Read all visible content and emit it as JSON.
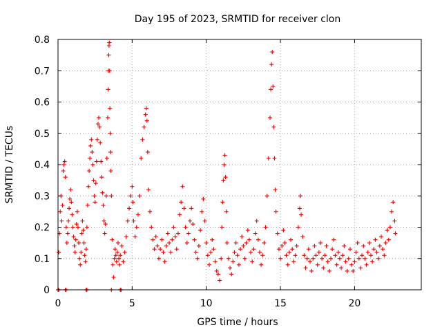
{
  "chart_data": {
    "type": "scatter",
    "title": "Day 195 of 2023, SRMTID for receiver clon",
    "xlabel": "GPS time / hours",
    "ylabel": "SRMTID / TECUs",
    "xlim": [
      0,
      24.5
    ],
    "ylim": [
      0,
      0.8
    ],
    "x_ticks": [
      0,
      5,
      10,
      15,
      20
    ],
    "y_ticks": [
      0,
      0.1,
      0.2,
      0.3,
      0.4,
      0.5,
      0.6,
      0.7,
      0.8
    ],
    "x_tick_labels": [
      "0",
      "5",
      "10",
      "15",
      "20"
    ],
    "y_tick_labels": [
      "0",
      "0.1",
      "0.2",
      "0.3",
      "0.4",
      "0.5",
      "0.6",
      "0.7",
      "0.8"
    ],
    "grid": true,
    "marker": "+",
    "marker_color": "#ff0000",
    "series": [
      {
        "name": "SRMTID",
        "points": [
          [
            0.0,
            0.0
          ],
          [
            0.05,
            0.0
          ],
          [
            0.5,
            0.0
          ],
          [
            0.55,
            0.0
          ],
          [
            1.9,
            0.0
          ],
          [
            1.95,
            0.0
          ],
          [
            3.6,
            0.0
          ],
          [
            4.2,
            0.0
          ],
          [
            4.25,
            0.0
          ],
          [
            0.05,
            0.12
          ],
          [
            0.1,
            0.18
          ],
          [
            0.15,
            0.25
          ],
          [
            0.2,
            0.3
          ],
          [
            0.25,
            0.22
          ],
          [
            0.3,
            0.27
          ],
          [
            0.35,
            0.38
          ],
          [
            0.4,
            0.4
          ],
          [
            0.45,
            0.41
          ],
          [
            0.5,
            0.36
          ],
          [
            0.55,
            0.2
          ],
          [
            0.6,
            0.15
          ],
          [
            0.65,
            0.18
          ],
          [
            0.7,
            0.22
          ],
          [
            0.75,
            0.26
          ],
          [
            0.8,
            0.29
          ],
          [
            0.85,
            0.32
          ],
          [
            0.9,
            0.28
          ],
          [
            0.95,
            0.24
          ],
          [
            1.0,
            0.2
          ],
          [
            1.05,
            0.17
          ],
          [
            1.1,
            0.14
          ],
          [
            1.15,
            0.12
          ],
          [
            1.2,
            0.16
          ],
          [
            1.25,
            0.21
          ],
          [
            1.3,
            0.25
          ],
          [
            1.35,
            0.2
          ],
          [
            1.4,
            0.15
          ],
          [
            1.45,
            0.1
          ],
          [
            1.5,
            0.08
          ],
          [
            1.55,
            0.12
          ],
          [
            1.6,
            0.18
          ],
          [
            1.65,
            0.22
          ],
          [
            1.7,
            0.19
          ],
          [
            1.75,
            0.15
          ],
          [
            1.8,
            0.11
          ],
          [
            1.85,
            0.09
          ],
          [
            1.9,
            0.13
          ],
          [
            1.95,
            0.2
          ],
          [
            2.0,
            0.27
          ],
          [
            2.05,
            0.33
          ],
          [
            2.1,
            0.38
          ],
          [
            2.15,
            0.42
          ],
          [
            2.2,
            0.46
          ],
          [
            2.25,
            0.48
          ],
          [
            2.3,
            0.44
          ],
          [
            2.35,
            0.4
          ],
          [
            2.4,
            0.35
          ],
          [
            2.45,
            0.3
          ],
          [
            2.5,
            0.28
          ],
          [
            2.55,
            0.34
          ],
          [
            2.6,
            0.41
          ],
          [
            2.65,
            0.48
          ],
          [
            2.7,
            0.53
          ],
          [
            2.75,
            0.55
          ],
          [
            2.8,
            0.52
          ],
          [
            2.85,
            0.47
          ],
          [
            2.9,
            0.41
          ],
          [
            2.95,
            0.36
          ],
          [
            3.0,
            0.31
          ],
          [
            3.05,
            0.27
          ],
          [
            3.1,
            0.22
          ],
          [
            3.15,
            0.18
          ],
          [
            3.2,
            0.21
          ],
          [
            3.25,
            0.3
          ],
          [
            3.3,
            0.42
          ],
          [
            3.35,
            0.55
          ],
          [
            3.38,
            0.64
          ],
          [
            3.4,
            0.7
          ],
          [
            3.42,
            0.75
          ],
          [
            3.44,
            0.78
          ],
          [
            3.46,
            0.79
          ],
          [
            3.48,
            0.7
          ],
          [
            3.5,
            0.58
          ],
          [
            3.52,
            0.5
          ],
          [
            3.54,
            0.44
          ],
          [
            3.56,
            0.38
          ],
          [
            3.6,
            0.3
          ],
          [
            3.65,
            0.16
          ],
          [
            3.7,
            0.08
          ],
          [
            3.75,
            0.04
          ],
          [
            3.8,
            0.1
          ],
          [
            3.85,
            0.13
          ],
          [
            3.9,
            0.11
          ],
          [
            3.95,
            0.09
          ],
          [
            4.0,
            0.12
          ],
          [
            4.05,
            0.15
          ],
          [
            4.1,
            0.1
          ],
          [
            4.15,
            0.08
          ],
          [
            4.2,
            0.11
          ],
          [
            4.3,
            0.14
          ],
          [
            4.4,
            0.09
          ],
          [
            4.5,
            0.12
          ],
          [
            4.6,
            0.17
          ],
          [
            4.7,
            0.22
          ],
          [
            4.8,
            0.26
          ],
          [
            4.9,
            0.3
          ],
          [
            5.0,
            0.33
          ],
          [
            5.05,
            0.28
          ],
          [
            5.1,
            0.22
          ],
          [
            5.2,
            0.17
          ],
          [
            5.3,
            0.2
          ],
          [
            5.4,
            0.24
          ],
          [
            5.5,
            0.3
          ],
          [
            5.6,
            0.42
          ],
          [
            5.7,
            0.48
          ],
          [
            5.8,
            0.52
          ],
          [
            5.9,
            0.56
          ],
          [
            5.95,
            0.58
          ],
          [
            6.0,
            0.54
          ],
          [
            6.05,
            0.44
          ],
          [
            6.1,
            0.32
          ],
          [
            6.2,
            0.25
          ],
          [
            6.3,
            0.2
          ],
          [
            6.4,
            0.16
          ],
          [
            6.5,
            0.13
          ],
          [
            6.6,
            0.17
          ],
          [
            6.7,
            0.14
          ],
          [
            6.8,
            0.1
          ],
          [
            6.9,
            0.13
          ],
          [
            7.0,
            0.16
          ],
          [
            7.1,
            0.12
          ],
          [
            7.2,
            0.09
          ],
          [
            7.3,
            0.14
          ],
          [
            7.4,
            0.18
          ],
          [
            7.5,
            0.15
          ],
          [
            7.6,
            0.12
          ],
          [
            7.7,
            0.16
          ],
          [
            7.8,
            0.2
          ],
          [
            7.9,
            0.17
          ],
          [
            8.0,
            0.13
          ],
          [
            8.1,
            0.18
          ],
          [
            8.2,
            0.24
          ],
          [
            8.3,
            0.28
          ],
          [
            8.4,
            0.33
          ],
          [
            8.5,
            0.26
          ],
          [
            8.6,
            0.2
          ],
          [
            8.7,
            0.15
          ],
          [
            8.8,
            0.18
          ],
          [
            8.9,
            0.22
          ],
          [
            9.0,
            0.26
          ],
          [
            9.1,
            0.21
          ],
          [
            9.2,
            0.16
          ],
          [
            9.3,
            0.12
          ],
          [
            9.4,
            0.1
          ],
          [
            9.5,
            0.14
          ],
          [
            9.6,
            0.19
          ],
          [
            9.7,
            0.25
          ],
          [
            9.8,
            0.29
          ],
          [
            9.9,
            0.22
          ],
          [
            10.0,
            0.15
          ],
          [
            10.1,
            0.11
          ],
          [
            10.2,
            0.08
          ],
          [
            10.3,
            0.12
          ],
          [
            10.4,
            0.16
          ],
          [
            10.5,
            0.13
          ],
          [
            10.6,
            0.09
          ],
          [
            10.7,
            0.06
          ],
          [
            10.8,
            0.05
          ],
          [
            10.9,
            0.03
          ],
          [
            11.0,
            0.1
          ],
          [
            11.05,
            0.2
          ],
          [
            11.1,
            0.28
          ],
          [
            11.15,
            0.35
          ],
          [
            11.2,
            0.4
          ],
          [
            11.25,
            0.43
          ],
          [
            11.3,
            0.36
          ],
          [
            11.35,
            0.25
          ],
          [
            11.4,
            0.15
          ],
          [
            11.5,
            0.1
          ],
          [
            11.6,
            0.07
          ],
          [
            11.7,
            0.05
          ],
          [
            11.8,
            0.09
          ],
          [
            11.9,
            0.12
          ],
          [
            12.0,
            0.15
          ],
          [
            12.1,
            0.11
          ],
          [
            12.2,
            0.08
          ],
          [
            12.3,
            0.13
          ],
          [
            12.4,
            0.17
          ],
          [
            12.5,
            0.14
          ],
          [
            12.6,
            0.1
          ],
          [
            12.7,
            0.15
          ],
          [
            12.8,
            0.19
          ],
          [
            12.9,
            0.16
          ],
          [
            13.0,
            0.12
          ],
          [
            13.1,
            0.09
          ],
          [
            13.2,
            0.13
          ],
          [
            13.3,
            0.18
          ],
          [
            13.4,
            0.22
          ],
          [
            13.5,
            0.16
          ],
          [
            13.6,
            0.12
          ],
          [
            13.7,
            0.08
          ],
          [
            13.8,
            0.11
          ],
          [
            13.9,
            0.15
          ],
          [
            14.0,
            0.2
          ],
          [
            14.1,
            0.3
          ],
          [
            14.2,
            0.42
          ],
          [
            14.3,
            0.55
          ],
          [
            14.35,
            0.64
          ],
          [
            14.4,
            0.72
          ],
          [
            14.45,
            0.76
          ],
          [
            14.5,
            0.65
          ],
          [
            14.55,
            0.52
          ],
          [
            14.6,
            0.42
          ],
          [
            14.65,
            0.32
          ],
          [
            14.7,
            0.25
          ],
          [
            14.8,
            0.18
          ],
          [
            14.9,
            0.13
          ],
          [
            15.0,
            0.1
          ],
          [
            15.1,
            0.14
          ],
          [
            15.2,
            0.19
          ],
          [
            15.3,
            0.15
          ],
          [
            15.4,
            0.11
          ],
          [
            15.5,
            0.08
          ],
          [
            15.6,
            0.12
          ],
          [
            15.7,
            0.16
          ],
          [
            15.8,
            0.13
          ],
          [
            15.9,
            0.09
          ],
          [
            16.0,
            0.11
          ],
          [
            16.1,
            0.14
          ],
          [
            16.2,
            0.2
          ],
          [
            16.3,
            0.26
          ],
          [
            16.35,
            0.3
          ],
          [
            16.4,
            0.24
          ],
          [
            16.5,
            0.17
          ],
          [
            16.6,
            0.11
          ],
          [
            16.7,
            0.07
          ],
          [
            16.8,
            0.1
          ],
          [
            16.9,
            0.13
          ],
          [
            17.0,
            0.09
          ],
          [
            17.1,
            0.06
          ],
          [
            17.2,
            0.1
          ],
          [
            17.3,
            0.14
          ],
          [
            17.4,
            0.11
          ],
          [
            17.5,
            0.08
          ],
          [
            17.6,
            0.12
          ],
          [
            17.7,
            0.15
          ],
          [
            17.8,
            0.1
          ],
          [
            17.9,
            0.07
          ],
          [
            18.0,
            0.11
          ],
          [
            18.1,
            0.14
          ],
          [
            18.2,
            0.09
          ],
          [
            18.3,
            0.06
          ],
          [
            18.4,
            0.1
          ],
          [
            18.5,
            0.13
          ],
          [
            18.6,
            0.16
          ],
          [
            18.7,
            0.11
          ],
          [
            18.8,
            0.08
          ],
          [
            18.9,
            0.12
          ],
          [
            19.0,
            0.1
          ],
          [
            19.1,
            0.07
          ],
          [
            19.2,
            0.11
          ],
          [
            19.3,
            0.14
          ],
          [
            19.4,
            0.09
          ],
          [
            19.5,
            0.06
          ],
          [
            19.6,
            0.1
          ],
          [
            19.7,
            0.13
          ],
          [
            19.8,
            0.08
          ],
          [
            19.9,
            0.06
          ],
          [
            20.0,
            0.09
          ],
          [
            20.1,
            0.12
          ],
          [
            20.2,
            0.15
          ],
          [
            20.3,
            0.1
          ],
          [
            20.4,
            0.07
          ],
          [
            20.5,
            0.11
          ],
          [
            20.6,
            0.14
          ],
          [
            20.7,
            0.1
          ],
          [
            20.8,
            0.08
          ],
          [
            20.9,
            0.12
          ],
          [
            21.0,
            0.15
          ],
          [
            21.1,
            0.11
          ],
          [
            21.2,
            0.09
          ],
          [
            21.3,
            0.13
          ],
          [
            21.4,
            0.16
          ],
          [
            21.5,
            0.12
          ],
          [
            21.6,
            0.1
          ],
          [
            21.7,
            0.14
          ],
          [
            21.8,
            0.17
          ],
          [
            21.9,
            0.13
          ],
          [
            22.0,
            0.11
          ],
          [
            22.1,
            0.15
          ],
          [
            22.2,
            0.19
          ],
          [
            22.3,
            0.16
          ],
          [
            22.4,
            0.2
          ],
          [
            22.5,
            0.25
          ],
          [
            22.6,
            0.28
          ],
          [
            22.7,
            0.22
          ],
          [
            22.75,
            0.18
          ]
        ]
      }
    ]
  }
}
